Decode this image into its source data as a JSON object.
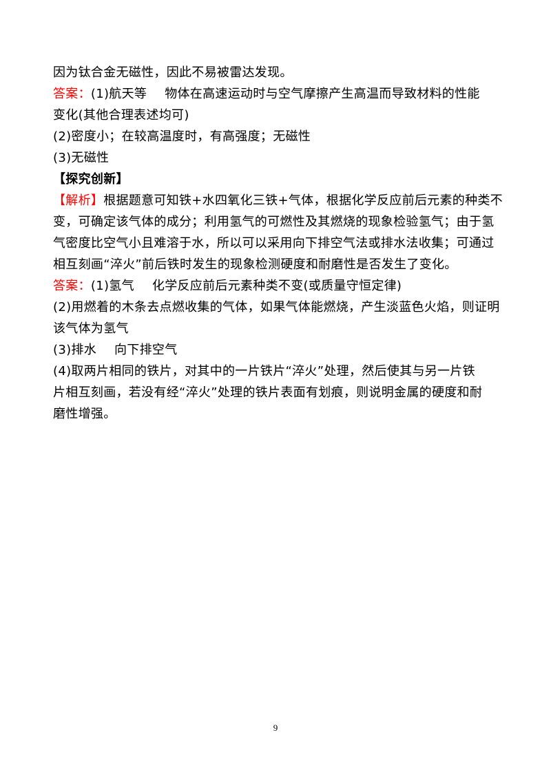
{
  "lines": [
    {
      "text": "因为钛合金无磁性，因此不易被雷达发现。"
    },
    {
      "label": "答案：",
      "text": "(1)航天等",
      "text2": "物体在高速运动时与空气摩擦产生高温而导致材料的性能"
    },
    {
      "text": "变化(其他合理表述均可)"
    },
    {
      "text": "(2)密度小；在较高温度时，有高强度；无磁性"
    },
    {
      "text": "(3)无磁性"
    },
    {
      "heading": "【探究创新】"
    },
    {
      "label": "【解析】",
      "text": "根据题意可知铁+水四氧化三铁+气体，根据化学反应前后元素的种类不"
    },
    {
      "text": "变，可确定该气体的成分；利用氢气的可燃性及其燃烧的现象检验氢气；由于氢"
    },
    {
      "text": "气密度比空气小且难溶于水，所以可以采用向下排空气法或排水法收集；可通过"
    },
    {
      "text": "相互刻画“淬火”前后铁时发生的现象检测硬度和耐磨性是否发生了变化。"
    },
    {
      "label": "答案：",
      "text": "(1)氢气",
      "text2": "化学反应前后元素种类不变(或质量守恒定律)"
    },
    {
      "text": "(2)用燃着的木条去点燃收集的气体，如果气体能燃烧，产生淡蓝色火焰，则证明"
    },
    {
      "text": "该气体为氢气"
    },
    {
      "text": "(3)排水",
      "text2": "向下排空气"
    },
    {
      "text": "(4)取两片相同的铁片，对其中的一片铁片“淬火”处理，然后使其与另一片铁"
    },
    {
      "text": "片相互刻画，若没有经“淬火”处理的铁片表面有划痕，则说明金属的硬度和耐"
    },
    {
      "text": "磨性增强。"
    }
  ],
  "page_number": "9",
  "colors": {
    "label": "#ff0000",
    "text": "#000000"
  }
}
